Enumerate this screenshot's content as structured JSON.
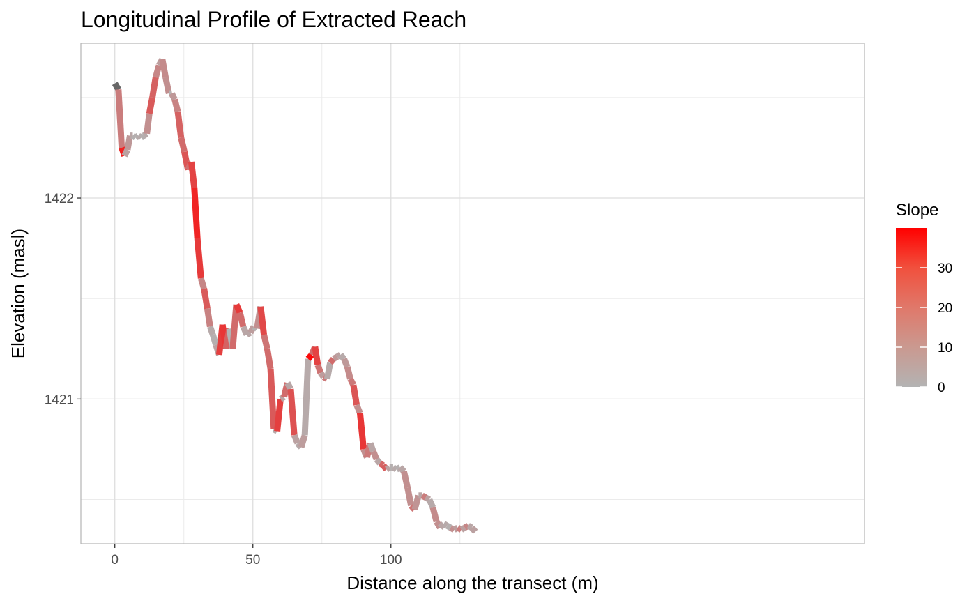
{
  "chart_data": {
    "type": "line",
    "title": "Longitudinal Profile of Extracted Reach",
    "xlabel": "Distance along the transect (m)",
    "ylabel": "Elevation (masl)",
    "xlim": [
      -12.3,
      271.5
    ],
    "ylim": [
      1420.28,
      1422.77
    ],
    "x_ticks": [
      0,
      50,
      100
    ],
    "y_ticks": [
      1421,
      1422
    ],
    "grid": true,
    "legend": {
      "title": "Slope",
      "position": "right",
      "type": "colorbar",
      "ticks": [
        0,
        10,
        20,
        30
      ],
      "range": [
        0,
        40
      ],
      "colors": {
        "low": "#b3b3b3",
        "high": "#ff0000",
        "na": "#666666"
      }
    },
    "x": [
      0.0,
      1.3,
      2.5,
      3.5,
      4.6,
      5.5,
      6.5,
      7.5,
      8.5,
      9.5,
      10.5,
      11.6,
      12.5,
      13.6,
      14.8,
      16.0,
      17.2,
      18.4,
      19.6,
      20.6,
      21.7,
      22.8,
      24.0,
      25.2,
      26.5,
      27.7,
      28.8,
      29.9,
      31.2,
      32.3,
      33.5,
      34.5,
      35.5,
      36.6,
      37.8,
      39.0,
      40.2,
      41.5,
      42.7,
      44.0,
      45.3,
      46.5,
      47.8,
      49.1,
      50.3,
      51.5,
      52.8,
      54.0,
      55.2,
      56.4,
      57.6,
      58.8,
      60.0,
      61.3,
      62.5,
      63.7,
      65.0,
      66.2,
      67.5,
      68.8,
      70.0,
      71.3,
      72.5,
      73.5,
      74.5,
      75.6,
      76.9,
      78.0,
      79.2,
      80.5,
      81.7,
      83.0,
      84.2,
      85.3,
      86.4,
      87.6,
      88.8,
      90.1,
      91.3,
      92.5,
      93.6,
      94.8,
      96.0,
      97.2,
      98.4,
      99.5,
      100.8,
      102.0,
      103.3,
      104.7,
      106.0,
      107.3,
      108.6,
      110.0,
      111.3,
      112.6,
      113.9,
      115.2,
      116.5,
      117.8,
      119.1,
      120.3,
      121.6,
      122.9,
      124.2,
      125.5,
      126.7,
      128.0,
      129.3,
      130.6
    ],
    "y": [
      1422.57,
      1422.54,
      1422.25,
      1422.21,
      1422.24,
      1422.31,
      1422.31,
      1422.3,
      1422.31,
      1422.3,
      1422.31,
      1422.32,
      1422.42,
      1422.5,
      1422.6,
      1422.66,
      1422.69,
      1422.6,
      1422.52,
      1422.52,
      1422.49,
      1422.43,
      1422.3,
      1422.23,
      1422.14,
      1422.18,
      1422.05,
      1421.8,
      1421.6,
      1421.55,
      1421.45,
      1421.36,
      1421.32,
      1421.27,
      1421.22,
      1421.37,
      1421.25,
      1421.35,
      1421.25,
      1421.47,
      1421.43,
      1421.36,
      1421.32,
      1421.33,
      1421.36,
      1421.35,
      1421.46,
      1421.32,
      1421.25,
      1421.15,
      1420.85,
      1420.84,
      1421.0,
      1421.01,
      1421.08,
      1421.05,
      1420.82,
      1420.78,
      1420.76,
      1420.82,
      1421.2,
      1421.22,
      1421.26,
      1421.17,
      1421.13,
      1421.11,
      1421.1,
      1421.18,
      1421.2,
      1421.21,
      1421.22,
      1421.2,
      1421.16,
      1421.1,
      1421.07,
      1420.97,
      1420.93,
      1420.75,
      1420.71,
      1420.78,
      1420.74,
      1420.7,
      1420.68,
      1420.67,
      1420.65,
      1420.66,
      1420.66,
      1420.65,
      1420.66,
      1420.64,
      1420.56,
      1420.47,
      1420.45,
      1420.52,
      1420.52,
      1420.51,
      1420.5,
      1420.46,
      1420.39,
      1420.36,
      1420.38,
      1420.37,
      1420.36,
      1420.35,
      1420.36,
      1420.35,
      1420.36,
      1420.37,
      1420.36,
      1420.34
    ],
    "slope": [
      null,
      12,
      32,
      4,
      6,
      3,
      1,
      1,
      2,
      1,
      2,
      8,
      20,
      18,
      10,
      5,
      9,
      8,
      0,
      6,
      11,
      18,
      16,
      21,
      15,
      25,
      32,
      27,
      10,
      20,
      11,
      2,
      1,
      4,
      26,
      28,
      18,
      0,
      16,
      27,
      16,
      3,
      3,
      5,
      1,
      8,
      24,
      14,
      16,
      20,
      2,
      26,
      4,
      16,
      3,
      22,
      4,
      2,
      5,
      2,
      38,
      16,
      25,
      14,
      5,
      13,
      2,
      16,
      6,
      4,
      2,
      6,
      9,
      13,
      21,
      8,
      28,
      8,
      13,
      3,
      8,
      3,
      17,
      19,
      4,
      1,
      2,
      1,
      3,
      8,
      8,
      14,
      7,
      3,
      12,
      4,
      2,
      9,
      8,
      3,
      2,
      1,
      8,
      5,
      12,
      4,
      10,
      3,
      4,
      2
    ]
  }
}
